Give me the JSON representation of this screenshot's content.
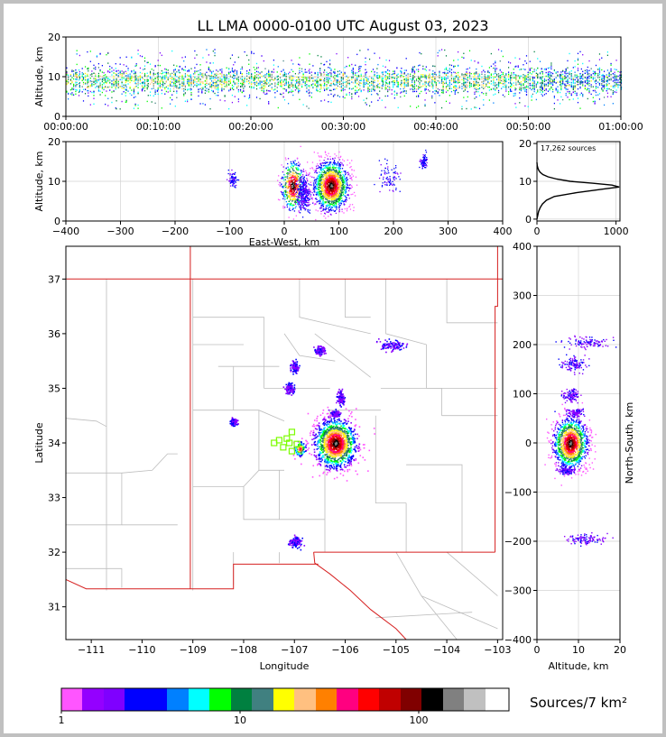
{
  "title": "LL LMA 0000-0100 UTC August 03, 2023",
  "colors": {
    "frame_bg": "#c0c0c0",
    "grid": "#d3d3d3",
    "county": "#bdbdbd",
    "state": "#d62020",
    "station": "#7cfc00"
  },
  "chart_data": [
    {
      "id": "time_height",
      "type": "scatter",
      "ylabel": "Altitude, km",
      "xlabel": "",
      "x_ticks": [
        "00:00:00",
        "00:10:00",
        "00:20:00",
        "00:30:00",
        "00:40:00",
        "00:50:00",
        "01:00:00"
      ],
      "xlim_minutes": [
        0,
        60
      ],
      "ylim": [
        0,
        20
      ],
      "y_ticks": [
        "0",
        "10",
        "20"
      ],
      "grid": true,
      "source_band_km": [
        5,
        13
      ],
      "source_core_km": [
        7,
        11
      ]
    },
    {
      "id": "ew_height",
      "type": "scatter",
      "xlabel": "East-West, km",
      "ylabel": "Altitude, km",
      "xlim": [
        -400,
        400
      ],
      "ylim": [
        0,
        20
      ],
      "x_ticks": [
        "−400",
        "−300",
        "−200",
        "−100",
        "0",
        "100",
        "200",
        "300",
        "400"
      ],
      "y_ticks": [
        "0",
        "10",
        "20"
      ],
      "grid": true,
      "clusters": [
        {
          "x": -95,
          "y": 10.5,
          "spread": [
            4,
            1
          ]
        },
        {
          "x": 15,
          "y": 9,
          "spread": [
            10,
            3
          ]
        },
        {
          "x": 35,
          "y": 7,
          "spread": [
            6,
            2
          ]
        },
        {
          "x": 85,
          "y": 9,
          "spread": [
            15,
            3
          ]
        },
        {
          "x": 190,
          "y": 11,
          "spread": [
            12,
            2
          ]
        },
        {
          "x": 255,
          "y": 15,
          "spread": [
            3,
            1
          ]
        }
      ]
    },
    {
      "id": "alt_histogram",
      "type": "line",
      "annotation": "17,262 sources",
      "xlim": [
        0,
        1050
      ],
      "ylim": [
        0,
        20
      ],
      "x_ticks": [
        "0",
        "1000"
      ],
      "y_ticks": [
        "0",
        "10",
        "20"
      ],
      "profile": [
        [
          0,
          0
        ],
        [
          10,
          1
        ],
        [
          20,
          2
        ],
        [
          40,
          3
        ],
        [
          70,
          4
        ],
        [
          120,
          5
        ],
        [
          220,
          6
        ],
        [
          500,
          7
        ],
        [
          850,
          8
        ],
        [
          1040,
          8.5
        ],
        [
          950,
          9
        ],
        [
          700,
          9.5
        ],
        [
          420,
          10
        ],
        [
          250,
          10.6
        ],
        [
          140,
          11.2
        ],
        [
          75,
          11.8
        ],
        [
          40,
          12.4
        ],
        [
          20,
          13
        ],
        [
          10,
          13.6
        ],
        [
          3,
          14.2
        ],
        [
          0,
          15
        ]
      ]
    },
    {
      "id": "plan_view",
      "type": "scatter",
      "xlabel": "Longitude",
      "ylabel": "Latitude",
      "xlim": [
        -111.5,
        -102.9
      ],
      "ylim": [
        30.4,
        37.6
      ],
      "x_ticks": [
        "−111",
        "−110",
        "−109",
        "−108",
        "−107",
        "−106",
        "−105",
        "−104",
        "−103"
      ],
      "y_ticks": [
        "31",
        "32",
        "33",
        "34",
        "35",
        "36",
        "37"
      ],
      "clusters": [
        {
          "lon": -106.2,
          "lat": 34.0,
          "spread": [
            0.2,
            0.22
          ]
        },
        {
          "lon": -106.9,
          "lat": 33.9,
          "spread": [
            0.06,
            0.07
          ]
        },
        {
          "lon": -105.1,
          "lat": 35.8,
          "spread": [
            0.12,
            0.05
          ]
        },
        {
          "lon": -107.0,
          "lat": 35.4,
          "spread": [
            0.04,
            0.05
          ]
        },
        {
          "lon": -107.1,
          "lat": 35.0,
          "spread": [
            0.05,
            0.05
          ]
        },
        {
          "lon": -106.1,
          "lat": 34.85,
          "spread": [
            0.04,
            0.06
          ]
        },
        {
          "lon": -107.0,
          "lat": 32.2,
          "spread": [
            0.06,
            0.05
          ]
        },
        {
          "lon": -106.5,
          "lat": 35.7,
          "spread": [
            0.05,
            0.04
          ]
        },
        {
          "lon": -108.2,
          "lat": 34.4,
          "spread": [
            0.03,
            0.03
          ]
        },
        {
          "lon": -106.2,
          "lat": 34.55,
          "spread": [
            0.04,
            0.03
          ]
        }
      ],
      "stations": [
        {
          "lon": -107.05,
          "lat": 34.2
        },
        {
          "lon": -107.3,
          "lat": 34.05
        },
        {
          "lon": -107.15,
          "lat": 34.08
        },
        {
          "lon": -106.95,
          "lat": 33.98
        },
        {
          "lon": -107.4,
          "lat": 34.0
        },
        {
          "lon": -107.22,
          "lat": 33.92
        },
        {
          "lon": -107.05,
          "lat": 33.85
        },
        {
          "lon": -107.1,
          "lat": 34.0
        }
      ]
    },
    {
      "id": "ns_height",
      "type": "scatter",
      "xlabel": "Altitude, km",
      "ylabel": "North-South, km",
      "xlim": [
        0,
        20
      ],
      "ylim": [
        -400,
        400
      ],
      "x_ticks": [
        "0",
        "10",
        "20"
      ],
      "y_ticks": [
        "−400",
        "−300",
        "−200",
        "−100",
        "0",
        "100",
        "200",
        "300",
        "400"
      ],
      "grid": true,
      "clusters": [
        {
          "x": 8,
          "y": 0,
          "spread": [
            2,
            25
          ]
        },
        {
          "x": 12,
          "y": 205,
          "spread": [
            2.5,
            5
          ]
        },
        {
          "x": 8.5,
          "y": 160,
          "spread": [
            1.5,
            8
          ]
        },
        {
          "x": 8,
          "y": 98,
          "spread": [
            1,
            6
          ]
        },
        {
          "x": 12,
          "y": -195,
          "spread": [
            2.5,
            5
          ]
        },
        {
          "x": 7,
          "y": -55,
          "spread": [
            1,
            4
          ]
        },
        {
          "x": 9,
          "y": 62,
          "spread": [
            1,
            4
          ]
        }
      ]
    }
  ],
  "colorbar": {
    "label": "Sources/7 km²",
    "tick_labels": [
      "1",
      "10",
      "100"
    ],
    "colors": [
      "#ff55ff",
      "#9400ff",
      "#7f00ff",
      "#0000ff",
      "#0000ff",
      "#0080ff",
      "#00ffff",
      "#00ff00",
      "#008040",
      "#408080",
      "#ffff00",
      "#ffc080",
      "#ff8000",
      "#ff0080",
      "#ff0000",
      "#c00000",
      "#800000",
      "#000000",
      "#808080",
      "#c0c0c0",
      "#ffffff"
    ]
  }
}
